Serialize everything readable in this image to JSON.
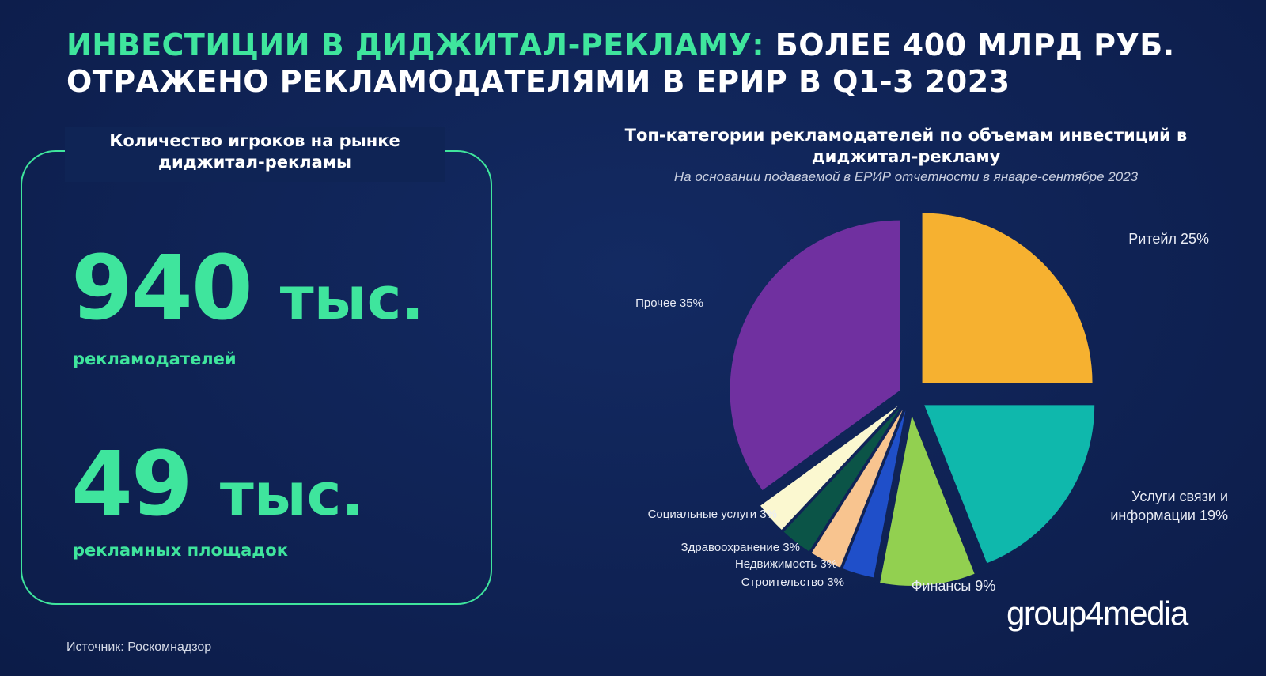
{
  "header": {
    "title_accent": "ИНВЕСТИЦИИ В ДИДЖИТАЛ-РЕКЛАМУ:",
    "title_rest": "БОЛЕЕ 400 МЛРД РУБ. ОТРАЖЕНО РЕКЛАМОДАТЕЛЯМИ В ЕРИР В Q1-3 2023"
  },
  "players": {
    "title": "Количество игроков на рынке диджитал-рекламы",
    "advertisers_value": "940",
    "advertisers_unit": "тыс.",
    "advertisers_label": "рекламодателей",
    "platforms_value": "49",
    "platforms_unit": "тыс.",
    "platforms_label": "рекламных площадок"
  },
  "source": "Источник: Роскомнадзор",
  "logo": "group4media",
  "colors": {
    "accent": "#3fe59d",
    "background": "#0f2253"
  },
  "chart_data": {
    "type": "pie",
    "title": "Топ-категории рекламодателей по объемам инвестиций в диджитал-рекламу",
    "subtitle": "На основании подаваемой в ЕРИР отчетности в январе-сентябре 2023",
    "unit": "%",
    "slices": [
      {
        "label": "Ритейл 25%",
        "value": 25,
        "color": "#f6b130"
      },
      {
        "label": "Услуги связи и информации 19%",
        "value": 19,
        "color": "#0fb8ac"
      },
      {
        "label": "Финансы 9%",
        "value": 9,
        "color": "#92d050"
      },
      {
        "label": "Строительство 3%",
        "value": 3,
        "color": "#1f4fc9"
      },
      {
        "label": "Недвижимость 3%",
        "value": 3,
        "color": "#f8c48f"
      },
      {
        "label": "Здравоохранение 3%",
        "value": 3,
        "color": "#0b5447"
      },
      {
        "label": "Социальные услуги 3%",
        "value": 3,
        "color": "#fbf8d0"
      },
      {
        "label": "Прочее 35%",
        "value": 35,
        "color": "#7030a0"
      }
    ]
  }
}
